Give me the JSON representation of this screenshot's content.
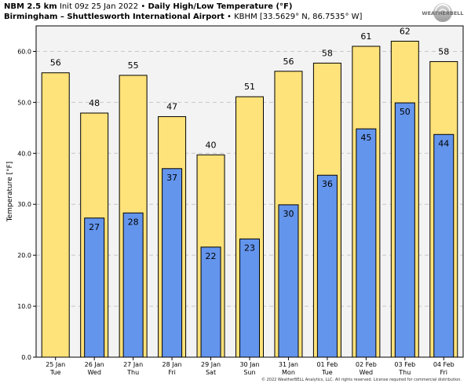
{
  "header": {
    "model": "NBM 2.5 km",
    "init": "Init 09z 25 Jan 2022",
    "sep": "•",
    "product": "Daily High/Low Temperature (°F)",
    "station_name": "Birmingham – Shuttlesworth International Airport",
    "station_info": "KBHM [33.5629° N, 86.7535° W]"
  },
  "logo": {
    "text": "WEATHERBELL"
  },
  "copyright": "© 2022 WeatherBELL Analytics, LLC. All rights reserved. License required for commercial distribution.",
  "colors": {
    "high": "#fee27a",
    "low": "#6495ed",
    "plot_bg": "#f3f3f3",
    "grid": "#c8c8c8"
  },
  "chart_data": {
    "type": "bar",
    "ylabel": "Temperature [°F]",
    "ylim": [
      0,
      65
    ],
    "yticks": [
      0,
      10,
      20,
      30,
      40,
      50,
      60
    ],
    "ytick_labels": [
      "0.0",
      "10.0",
      "20.0",
      "30.0",
      "40.0",
      "50.0",
      "60.0"
    ],
    "grid": true,
    "categories": [
      "25 Jan",
      "26 Jan",
      "27 Jan",
      "28 Jan",
      "29 Jan",
      "30 Jan",
      "31 Jan",
      "01 Feb",
      "02 Feb",
      "03 Feb",
      "04 Feb"
    ],
    "weekdays": [
      "Tue",
      "Wed",
      "Thu",
      "Fri",
      "Sat",
      "Sun",
      "Mon",
      "Tue",
      "Wed",
      "Thu",
      "Fri"
    ],
    "series": [
      {
        "values": [
          55.8,
          47.9,
          55.3,
          47.2,
          39.7,
          51.1,
          56.1,
          57.7,
          61.0,
          62.0,
          58.0
        ],
        "labels": [
          "56",
          "48",
          "55",
          "47",
          "40",
          "51",
          "56",
          "58",
          "61",
          "62",
          "58"
        ]
      },
      {
        "values": [
          null,
          27.3,
          28.3,
          37.0,
          21.6,
          23.2,
          29.9,
          35.7,
          44.8,
          49.9,
          43.7
        ],
        "labels": [
          null,
          "27",
          "28",
          "37",
          "22",
          "23",
          "30",
          "36",
          "45",
          "50",
          "44"
        ]
      }
    ]
  }
}
